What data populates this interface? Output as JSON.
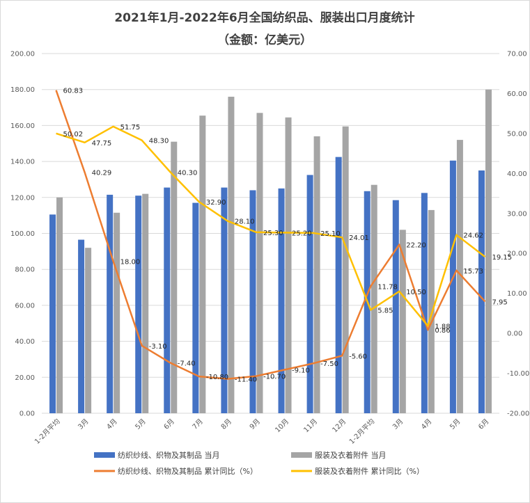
{
  "chart_data": {
    "type": "bar",
    "title": "2021年1月-2022年6月全国纺织品、服装出口月度统计",
    "subtitle": "（金额：亿美元）",
    "categories": [
      "1-2月平均",
      "3月",
      "4月",
      "5月",
      "6月",
      "7月",
      "8月",
      "9月",
      "10月",
      "11月",
      "12月",
      "1-2月平均",
      "3月",
      "4月",
      "5月",
      "6月"
    ],
    "y_left": {
      "min": 0,
      "max": 200,
      "step": 20,
      "tick_labels": [
        "0.00",
        "20.00",
        "40.00",
        "60.00",
        "80.00",
        "100.00",
        "120.00",
        "140.00",
        "160.00",
        "180.00",
        "200.00"
      ]
    },
    "y_right": {
      "min": -20,
      "max": 70,
      "step": 10,
      "tick_labels": [
        "-20.00",
        "-10.00",
        "0.00",
        "10.00",
        "20.00",
        "30.00",
        "40.00",
        "50.00",
        "60.00",
        "70.00"
      ]
    },
    "series": [
      {
        "name": "纺织纱线、织物及其制品 当月",
        "kind": "bar",
        "axis": "left",
        "color": "#4472c4",
        "values": [
          110.5,
          96.5,
          121.5,
          121,
          125.5,
          117,
          125.5,
          124,
          125,
          132.5,
          142.5,
          123.5,
          118.5,
          122.5,
          140.5,
          135
        ]
      },
      {
        "name": "服装及衣着附件 当月",
        "kind": "bar",
        "axis": "left",
        "color": "#a5a5a5",
        "values": [
          120,
          92,
          111.5,
          122,
          151,
          165.5,
          176,
          167,
          164.5,
          154,
          159.5,
          127,
          102,
          113,
          152,
          180
        ]
      },
      {
        "name": "纺织纱线、织物及其制品 累计同比（%）",
        "kind": "line",
        "axis": "right",
        "color": "#ed7d31",
        "values": [
          60.83,
          40.29,
          18.0,
          -3.1,
          -7.4,
          -10.8,
          -11.4,
          -10.7,
          -9.1,
          -7.5,
          -5.6,
          11.78,
          22.2,
          0.86,
          15.73,
          7.95
        ],
        "labels": [
          "60.83",
          "40.29",
          "18.00",
          "-3.10",
          "-7.40",
          "-10.80",
          "-11.40",
          "-10.70",
          "-9.10",
          "-7.50",
          "-5.60",
          "11.78",
          "22.20",
          "0.86",
          "15.73",
          "7.95"
        ]
      },
      {
        "name": "服装及衣着附件 累计同比（%）",
        "kind": "line",
        "axis": "right",
        "color": "#ffc000",
        "values": [
          50.02,
          47.75,
          51.75,
          48.3,
          40.3,
          32.9,
          28.1,
          25.3,
          25.2,
          25.1,
          24.01,
          5.85,
          10.5,
          1.88,
          24.62,
          19.15
        ],
        "labels": [
          "50.02",
          "47.75",
          "51.75",
          "48.30",
          "40.30",
          "32.90",
          "28.10",
          "25.30",
          "25.20",
          "25.10",
          "24.01",
          "5.85",
          "10.50",
          "1.88",
          "24.62",
          "19.15"
        ]
      }
    ],
    "legend": [
      {
        "label": "纺织纱线、织物及其制品 当月",
        "marker": "bar",
        "color": "#4472c4"
      },
      {
        "label": "服装及衣着附件 当月",
        "marker": "bar",
        "color": "#a5a5a5"
      },
      {
        "label": "纺织纱线、织物及其制品 累计同比（%）",
        "marker": "line",
        "color": "#ed7d31"
      },
      {
        "label": "服装及衣着附件 累计同比（%）",
        "marker": "line",
        "color": "#ffc000"
      }
    ],
    "grid": true,
    "legend_position": "bottom"
  }
}
